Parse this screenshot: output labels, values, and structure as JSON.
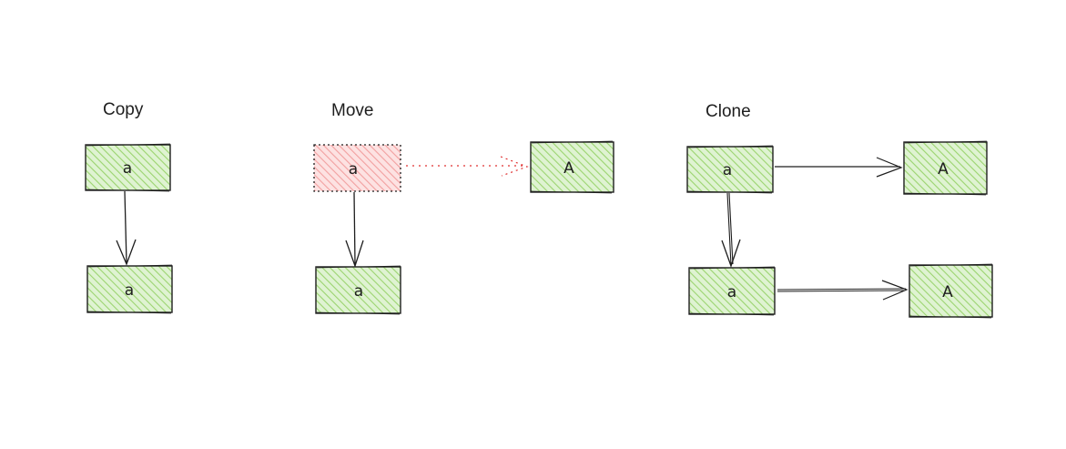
{
  "colors": {
    "ink": "#1e1e1e",
    "green_fill": "#b2f2bb",
    "green_hatch": "#8fd16c",
    "red_fill": "#ffc9c9",
    "red_hatch": "#f08c8c",
    "red_stroke": "#e03131"
  },
  "sections": {
    "copy": {
      "title": "Copy",
      "source": "a",
      "target": "a"
    },
    "move": {
      "title": "Move",
      "source": "a",
      "target": "a",
      "moved": "A"
    },
    "clone": {
      "title": "Clone",
      "source": "a",
      "target": "a",
      "source_link": "A",
      "target_link": "A"
    }
  }
}
